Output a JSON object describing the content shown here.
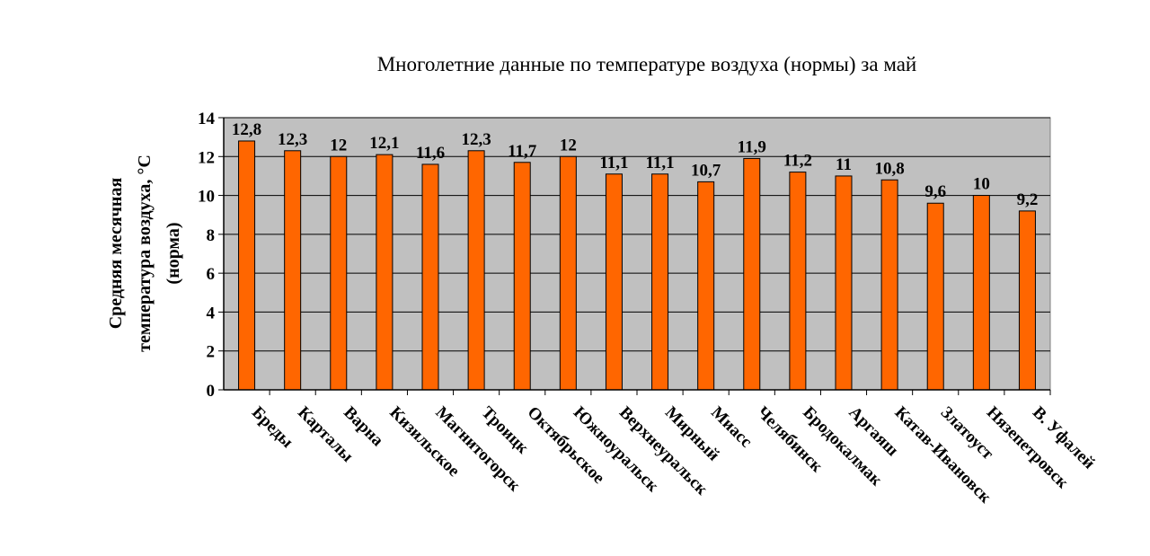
{
  "chart_data": {
    "type": "bar",
    "title": "Многолетние данные по температуре воздуха (нормы) за май",
    "ylabel_lines": [
      "Средняя месячная",
      "температура воздуха, °С",
      "(норма)"
    ],
    "xlabel": "",
    "ylim": [
      0,
      14
    ],
    "ytick_step": 2,
    "ytick_labels": [
      "0",
      "2",
      "4",
      "6",
      "8",
      "10",
      "12",
      "14"
    ],
    "grid": true,
    "legend": "none",
    "categories": [
      "Бреды",
      "Карталы",
      "Варна",
      "Кизильское",
      "Магнитогорск",
      "Троицк",
      "Октябрьское",
      "Южноуральск",
      "Верхнеуральск",
      "Мирный",
      "Миасс",
      "Челябинск",
      "Бродокалмак",
      "Аргаяш",
      "Катав-Ивановск",
      "Златоуст",
      "Нязепетровск",
      "В. Уфалей"
    ],
    "values": [
      12.8,
      12.3,
      12,
      12.1,
      11.6,
      12.3,
      11.7,
      12,
      11.1,
      11.1,
      10.7,
      11.9,
      11.2,
      11,
      10.8,
      9.6,
      10,
      9.2
    ],
    "value_labels": [
      "12,8",
      "12,3",
      "12",
      "12,1",
      "11,6",
      "12,3",
      "11,7",
      "12",
      "11,1",
      "11,1",
      "10,7",
      "11,9",
      "11,2",
      "11",
      "10,8",
      "9,6",
      "10",
      "9,2"
    ],
    "colors": {
      "bar_fill": "#ff6600",
      "bar_stroke": "#000000",
      "plot_background": "#c0c0c0",
      "gridline": "#000000"
    }
  }
}
